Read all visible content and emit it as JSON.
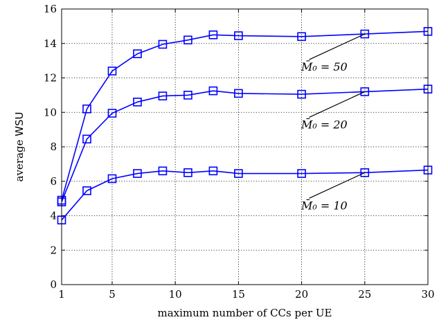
{
  "chart_data": {
    "type": "line",
    "xlabel": "maximum number of CCs per UE",
    "ylabel_main": "average ",
    "ylabel_accent": "WSU",
    "xlim": [
      1,
      30
    ],
    "ylim": [
      0,
      16
    ],
    "xticks": [
      1,
      5,
      10,
      15,
      20,
      25,
      30
    ],
    "yticks": [
      0,
      2,
      4,
      6,
      8,
      10,
      12,
      14,
      16
    ],
    "grid": true,
    "x": [
      1,
      3,
      5,
      7,
      9,
      11,
      13,
      15,
      20,
      25,
      30
    ],
    "series": [
      {
        "name": "M̄0 = 50",
        "annotation": "M̄₀ = 50",
        "color": "#0000ff",
        "values": [
          4.9,
          10.2,
          12.4,
          13.4,
          13.95,
          14.2,
          14.5,
          14.45,
          14.4,
          14.55,
          14.7
        ]
      },
      {
        "name": "M̄0 = 20",
        "annotation": "M̄₀ = 20",
        "color": "#0000ff",
        "values": [
          4.8,
          8.45,
          9.95,
          10.6,
          10.95,
          11.0,
          11.25,
          11.1,
          11.05,
          11.2,
          11.35
        ]
      },
      {
        "name": "M̄0 = 10",
        "annotation": "M̄₀ = 10",
        "color": "#0000ff",
        "values": [
          3.75,
          5.45,
          6.15,
          6.45,
          6.6,
          6.5,
          6.6,
          6.45,
          6.45,
          6.5,
          6.65
        ]
      }
    ]
  }
}
